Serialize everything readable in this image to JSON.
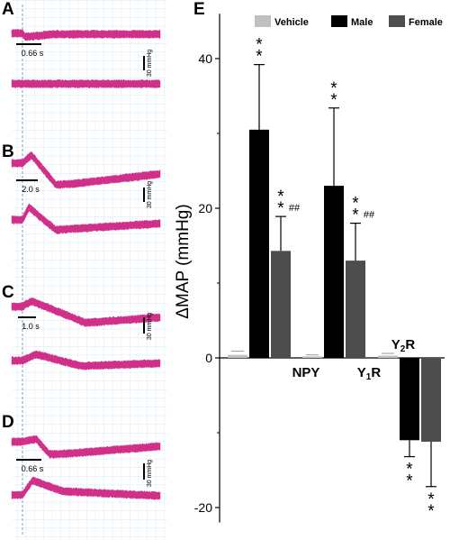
{
  "colors": {
    "trace": "#d0308a",
    "grid": "#c8dff2",
    "dashed": "#7f9fb8",
    "vehicle": "#c0c0c0",
    "male": "#000000",
    "female": "#4d4d4d"
  },
  "panels": [
    {
      "letter": "A",
      "time_label": "0.66 s",
      "scale_label": "30 mmHg"
    },
    {
      "letter": "B",
      "time_label": "2.0 s",
      "scale_label": "30 mmHg"
    },
    {
      "letter": "C",
      "time_label": "1.0 s",
      "scale_label": "30 mmHg"
    },
    {
      "letter": "D",
      "time_label": "0.66 s",
      "scale_label": "30 mmHg"
    }
  ],
  "chart_data": {
    "type": "bar",
    "panel_letter": "E",
    "ylabel": "ΔMAP (mmHg)",
    "ylim": [
      -22,
      46
    ],
    "yticks": [
      -20,
      0,
      20,
      40
    ],
    "legend": {
      "placement": "top",
      "entries": [
        "Vehicle",
        "Male",
        "Female"
      ]
    },
    "categories": [
      "NPY",
      "Y1R",
      "Y2R"
    ],
    "category_labels": [
      {
        "main": "NPY",
        "sub": ""
      },
      {
        "main": "Y",
        "sub": "1",
        "rest": "R"
      },
      {
        "main": "Y",
        "sub": "2",
        "rest": "R"
      }
    ],
    "series": [
      {
        "name": "Vehicle",
        "values": [
          0.4,
          0.2,
          0.3
        ],
        "errors": [
          0.5,
          0.2,
          0.3
        ],
        "marks": [
          "",
          "",
          ""
        ]
      },
      {
        "name": "Male",
        "values": [
          30.5,
          23.0,
          -11.0
        ],
        "errors": [
          8.7,
          10.4,
          2.2
        ],
        "marks": [
          "**",
          "**",
          "**"
        ]
      },
      {
        "name": "Female",
        "values": [
          14.3,
          13.0,
          -11.2
        ],
        "errors": [
          4.6,
          5.0,
          6.0
        ],
        "marks": [
          "**##",
          "**##",
          "**"
        ]
      }
    ]
  }
}
